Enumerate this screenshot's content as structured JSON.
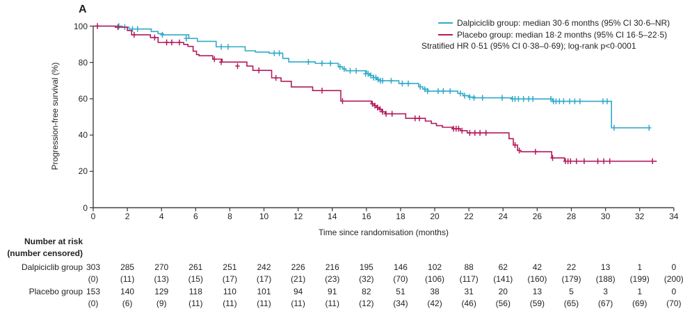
{
  "panel_label": "A",
  "colors": {
    "dalpiciclib": "#2FA9C9",
    "placebo": "#B4195A",
    "axis": "#404042",
    "text": "#231F20"
  },
  "legend": {
    "entries": [
      {
        "series": "dalpiciclib",
        "label": "Dalpiciclib group: median 30·6 months (95% CI 30·6–NR)"
      },
      {
        "series": "placebo",
        "label": "Placebo group: median 18·2 months (95% CI 16·5–22·5)"
      }
    ],
    "note": "Stratified HR 0·51 (95% CI 0·38–0·69); log-rank p<0·0001"
  },
  "chart_data": {
    "type": "line",
    "subtype": "kaplan-meier-step",
    "title": "",
    "xlabel": "Time since randomisation (months)",
    "ylabel": "Progression-free survival (%)",
    "xlim": [
      0,
      34
    ],
    "ylim": [
      0,
      100
    ],
    "xticks": [
      0,
      2,
      4,
      6,
      8,
      10,
      12,
      14,
      16,
      18,
      20,
      22,
      24,
      26,
      28,
      30,
      32,
      34
    ],
    "yticks": [
      0,
      20,
      40,
      60,
      80,
      100
    ],
    "grid": false,
    "legend_position": "top-right",
    "series": [
      {
        "name": "Dalpiciclib group",
        "color": "#2FA9C9",
        "median_months": "30·6",
        "ci": "30·6–NR",
        "steps": [
          [
            0,
            100
          ],
          [
            1.7,
            99.4
          ],
          [
            2.1,
            98.4
          ],
          [
            3.4,
            97
          ],
          [
            3.8,
            95.8
          ],
          [
            4.1,
            95.2
          ],
          [
            5.6,
            93.2
          ],
          [
            6.1,
            91.6
          ],
          [
            7.2,
            88.6
          ],
          [
            8.9,
            86.4
          ],
          [
            9.5,
            85.7
          ],
          [
            10.3,
            85.1
          ],
          [
            11.1,
            82.2
          ],
          [
            11.45,
            80.3
          ],
          [
            13.0,
            79.5
          ],
          [
            14.35,
            77.6
          ],
          [
            14.6,
            76.4
          ],
          [
            14.8,
            75.4
          ],
          [
            16.0,
            73.8
          ],
          [
            16.2,
            72.8
          ],
          [
            16.4,
            71.6
          ],
          [
            16.6,
            70.6
          ],
          [
            16.8,
            69.9
          ],
          [
            17.9,
            68.4
          ],
          [
            19.05,
            66.6
          ],
          [
            19.3,
            65.3
          ],
          [
            19.6,
            64.2
          ],
          [
            21.35,
            62.9
          ],
          [
            21.65,
            61.7
          ],
          [
            22.0,
            60.9
          ],
          [
            22.35,
            60.5
          ],
          [
            24.5,
            59.9
          ],
          [
            26.9,
            58.6
          ],
          [
            30.35,
            44
          ],
          [
            32.6,
            44
          ]
        ],
        "censor_marks": [
          [
            1.5,
            100
          ],
          [
            1.85,
            99.4
          ],
          [
            2.3,
            98.4
          ],
          [
            2.6,
            98.4
          ],
          [
            4.05,
            95.2
          ],
          [
            5.45,
            93.2
          ],
          [
            7.5,
            88.6
          ],
          [
            7.9,
            88.6
          ],
          [
            10.6,
            85.1
          ],
          [
            10.9,
            85.1
          ],
          [
            12.6,
            80.3
          ],
          [
            13.4,
            79.5
          ],
          [
            13.9,
            79.5
          ],
          [
            14.45,
            77.6
          ],
          [
            14.7,
            76.4
          ],
          [
            15.05,
            75.4
          ],
          [
            15.4,
            75.4
          ],
          [
            15.95,
            73.8
          ],
          [
            16.1,
            73.8
          ],
          [
            16.25,
            72.8
          ],
          [
            16.42,
            71.6
          ],
          [
            16.55,
            71.6
          ],
          [
            16.68,
            70.6
          ],
          [
            16.82,
            69.9
          ],
          [
            16.95,
            69.9
          ],
          [
            17.45,
            69.9
          ],
          [
            18.1,
            68.4
          ],
          [
            18.45,
            68.4
          ],
          [
            19.15,
            66.6
          ],
          [
            19.42,
            65.3
          ],
          [
            19.58,
            64.2
          ],
          [
            20.2,
            64.2
          ],
          [
            20.5,
            64.2
          ],
          [
            20.9,
            64.2
          ],
          [
            21.5,
            62.9
          ],
          [
            21.75,
            61.7
          ],
          [
            22.05,
            60.9
          ],
          [
            22.3,
            60.5
          ],
          [
            22.8,
            60.5
          ],
          [
            23.95,
            60.5
          ],
          [
            24.55,
            59.9
          ],
          [
            24.7,
            59.9
          ],
          [
            24.9,
            59.9
          ],
          [
            25.2,
            59.9
          ],
          [
            25.5,
            59.9
          ],
          [
            25.75,
            59.9
          ],
          [
            26.8,
            59.9
          ],
          [
            26.95,
            58.6
          ],
          [
            27.1,
            58.6
          ],
          [
            27.3,
            58.6
          ],
          [
            27.55,
            58.6
          ],
          [
            27.9,
            58.6
          ],
          [
            28.2,
            58.6
          ],
          [
            28.5,
            58.6
          ],
          [
            29.85,
            58.6
          ],
          [
            30.1,
            58.6
          ],
          [
            30.5,
            44
          ],
          [
            32.55,
            44
          ]
        ]
      },
      {
        "name": "Placebo group",
        "color": "#B4195A",
        "median_months": "18·2",
        "ci": "16·5–22·5",
        "steps": [
          [
            0,
            100
          ],
          [
            1.3,
            99.4
          ],
          [
            2.0,
            97.6
          ],
          [
            2.25,
            95.2
          ],
          [
            3.35,
            93.7
          ],
          [
            3.8,
            91
          ],
          [
            5.3,
            89.9
          ],
          [
            5.55,
            88.8
          ],
          [
            5.85,
            86.2
          ],
          [
            6.05,
            84.3
          ],
          [
            6.2,
            83.7
          ],
          [
            7.0,
            81.8
          ],
          [
            7.55,
            80.2
          ],
          [
            9.0,
            78
          ],
          [
            9.35,
            75.6
          ],
          [
            10.45,
            71.5
          ],
          [
            11.0,
            69.6
          ],
          [
            11.6,
            66.5
          ],
          [
            12.85,
            64.5
          ],
          [
            14.5,
            58.7
          ],
          [
            16.3,
            57.2
          ],
          [
            16.45,
            56.2
          ],
          [
            16.6,
            55.2
          ],
          [
            16.75,
            54.2
          ],
          [
            16.9,
            52.8
          ],
          [
            17.1,
            51.7
          ],
          [
            18.3,
            49.2
          ],
          [
            19.45,
            47.7
          ],
          [
            19.8,
            46.4
          ],
          [
            20.1,
            45.2
          ],
          [
            20.45,
            44.3
          ],
          [
            21.05,
            43.5
          ],
          [
            21.5,
            42.4
          ],
          [
            21.9,
            41.2
          ],
          [
            24.35,
            38
          ],
          [
            24.6,
            34.5
          ],
          [
            24.85,
            31.5
          ],
          [
            25.05,
            30.8
          ],
          [
            26.85,
            27.4
          ],
          [
            27.6,
            25.6
          ],
          [
            33.0,
            25.6
          ]
        ],
        "censor_marks": [
          [
            0.25,
            100
          ],
          [
            1.45,
            99.4
          ],
          [
            2.4,
            95.2
          ],
          [
            3.6,
            93.7
          ],
          [
            4.3,
            91
          ],
          [
            4.6,
            91
          ],
          [
            5.05,
            91
          ],
          [
            7.1,
            81.8
          ],
          [
            7.5,
            80.2
          ],
          [
            8.45,
            78
          ],
          [
            9.7,
            75.6
          ],
          [
            10.7,
            71.5
          ],
          [
            13.4,
            64.5
          ],
          [
            14.6,
            58.7
          ],
          [
            16.35,
            57.2
          ],
          [
            16.5,
            56.2
          ],
          [
            16.65,
            55.2
          ],
          [
            16.8,
            54.2
          ],
          [
            16.95,
            52.8
          ],
          [
            17.15,
            51.7
          ],
          [
            17.5,
            51.7
          ],
          [
            18.85,
            49.2
          ],
          [
            19.1,
            49.2
          ],
          [
            21.1,
            43.5
          ],
          [
            21.25,
            43.5
          ],
          [
            21.4,
            43.5
          ],
          [
            21.6,
            42.4
          ],
          [
            22.05,
            41.2
          ],
          [
            22.35,
            41.2
          ],
          [
            22.65,
            41.2
          ],
          [
            23.0,
            41.2
          ],
          [
            24.7,
            34.5
          ],
          [
            24.95,
            31.5
          ],
          [
            25.9,
            30.8
          ],
          [
            26.9,
            27.4
          ],
          [
            27.65,
            25.6
          ],
          [
            27.8,
            25.6
          ],
          [
            27.95,
            25.6
          ],
          [
            28.3,
            25.6
          ],
          [
            28.75,
            25.6
          ],
          [
            29.55,
            25.6
          ],
          [
            29.9,
            25.6
          ],
          [
            30.25,
            25.6
          ],
          [
            32.75,
            25.6
          ]
        ]
      }
    ]
  },
  "risk_table": {
    "header_line1": "Number at risk",
    "header_line2": "(number censored)",
    "time_points": [
      0,
      2,
      4,
      6,
      8,
      10,
      12,
      14,
      16,
      18,
      20,
      22,
      24,
      26,
      28,
      30,
      32,
      34
    ],
    "rows": [
      {
        "label": "Dalpiciclib group",
        "at_risk": [
          303,
          285,
          270,
          261,
          251,
          242,
          226,
          216,
          195,
          146,
          102,
          88,
          62,
          42,
          22,
          13,
          1,
          0
        ],
        "censored": [
          "(0)",
          "(11)",
          "(13)",
          "(15)",
          "(17)",
          "(17)",
          "(21)",
          "(23)",
          "(32)",
          "(70)",
          "(106)",
          "(117)",
          "(141)",
          "(160)",
          "(179)",
          "(188)",
          "(199)",
          "(200)"
        ]
      },
      {
        "label": "Placebo group",
        "at_risk": [
          153,
          140,
          129,
          118,
          110,
          101,
          94,
          91,
          82,
          51,
          38,
          31,
          20,
          13,
          5,
          3,
          1,
          0
        ],
        "censored": [
          "(0)",
          "(6)",
          "(9)",
          "(11)",
          "(11)",
          "(11)",
          "(11)",
          "(11)",
          "(12)",
          "(34)",
          "(42)",
          "(46)",
          "(56)",
          "(59)",
          "(65)",
          "(67)",
          "(69)",
          "(70)"
        ]
      }
    ]
  }
}
